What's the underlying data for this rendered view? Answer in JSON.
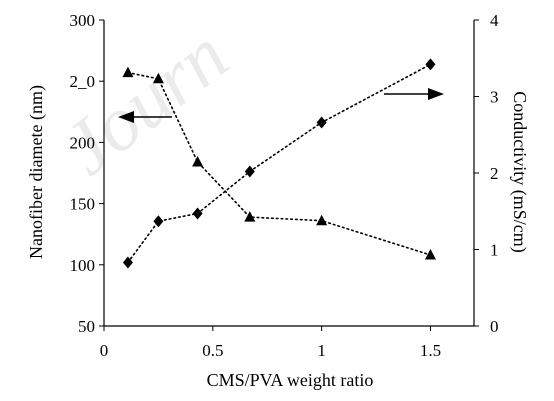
{
  "chart_data": {
    "type": "scatter",
    "xlabel": "CMS/PVA weight ratio",
    "ylabel_left": "Nanofiber diamete  (nm)",
    "ylabel_right": "Conductivity (mS/cm)",
    "xlim": [
      0,
      1.7
    ],
    "ylim_left": [
      50,
      300
    ],
    "ylim_right": [
      0,
      4
    ],
    "x_ticks": [
      0,
      0.5,
      1,
      1.5
    ],
    "x_tick_labels": [
      "0",
      "0.5",
      "1",
      "1.5"
    ],
    "y_left_ticks": [
      50,
      100,
      150,
      200,
      250,
      300
    ],
    "y_left_tick_labels": [
      "50",
      "100",
      "150",
      "200",
      "2_0",
      "300"
    ],
    "y_right_ticks": [
      0,
      1,
      2,
      3,
      4
    ],
    "y_right_tick_labels": [
      "0",
      "1",
      "2",
      "3",
      "4"
    ],
    "grid": false,
    "legend": "none",
    "series": [
      {
        "axis": "left",
        "marker": "triangle",
        "line": "dotted",
        "x": [
          0.11,
          0.25,
          0.43,
          0.67,
          1.0,
          1.5
        ],
        "y": [
          257,
          252,
          184,
          139,
          136,
          108
        ]
      },
      {
        "axis": "right",
        "marker": "diamond",
        "line": "dotted",
        "x": [
          0.11,
          0.25,
          0.43,
          0.67,
          1.0,
          1.5
        ],
        "y": [
          0.83,
          1.37,
          1.47,
          2.02,
          2.66,
          3.42
        ]
      }
    ],
    "annotations": [
      {
        "type": "arrow",
        "direction": "left",
        "points_to": "left axis"
      },
      {
        "type": "arrow",
        "direction": "right",
        "points_to": "right axis"
      }
    ],
    "watermark_text": "Journ"
  }
}
